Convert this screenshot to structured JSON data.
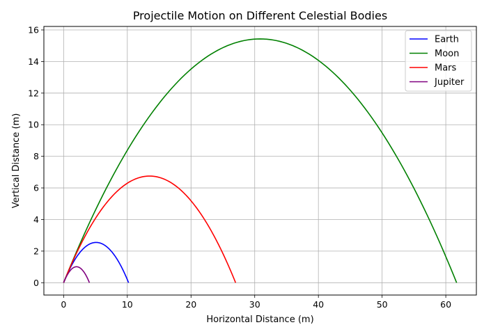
{
  "chart_data": {
    "type": "line",
    "title": "Projectile Motion on Different Celestial Bodies",
    "xlabel": "Horizontal Distance (m)",
    "ylabel": "Vertical Distance (m)",
    "xlim": [
      -3.1,
      64.8
    ],
    "ylim": [
      -0.78,
      16.22
    ],
    "xticks": [
      0,
      10,
      20,
      30,
      40,
      50,
      60
    ],
    "yticks": [
      0,
      2,
      4,
      6,
      8,
      10,
      12,
      14,
      16
    ],
    "grid": true,
    "legend_position": "upper right",
    "series": [
      {
        "name": "Earth",
        "color": "#0000ff",
        "range": 10.2,
        "max_height": 2.55
      },
      {
        "name": "Moon",
        "color": "#008000",
        "range": 61.7,
        "max_height": 15.43
      },
      {
        "name": "Mars",
        "color": "#ff0000",
        "range": 27.0,
        "max_height": 6.75
      },
      {
        "name": "Jupiter",
        "color": "#800080",
        "range": 4.05,
        "max_height": 1.01
      }
    ]
  }
}
